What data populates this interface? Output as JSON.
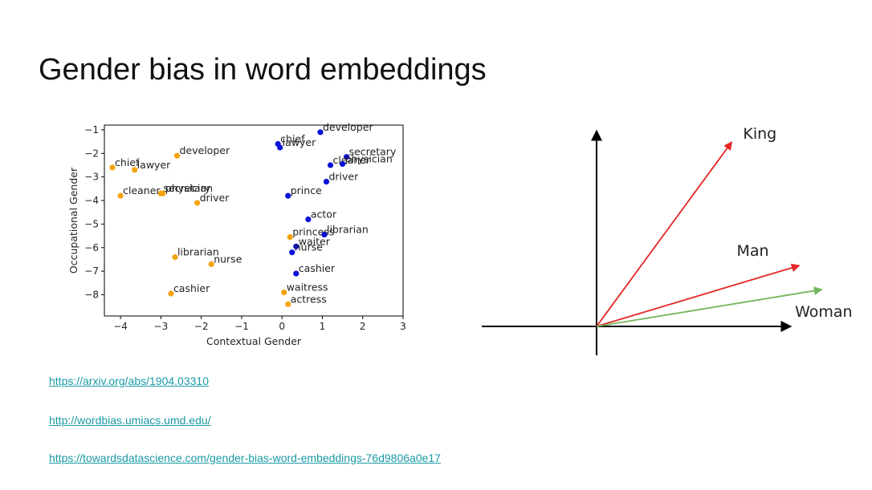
{
  "slide": {
    "title": "Gender bias in word embeddings",
    "links": [
      "https://arxiv.org/abs/1904.03310",
      "http://wordbias.umiacs.umd.edu/",
      "https://towardsdatascience.com/gender-bias-word-embeddings-76d9806a0e17"
    ]
  },
  "colors": {
    "orange": "#f5a30f",
    "blue": "#0a12d6",
    "red": "#e42626",
    "green": "#72b55b",
    "link": "#1a9aa5"
  },
  "chart_data": [
    {
      "type": "scatter",
      "xlabel": "Contextual Gender",
      "ylabel": "Occupational Gender",
      "xlim": [
        -4.4,
        3.0
      ],
      "ylim": [
        -8.9,
        -0.8
      ],
      "xticks": [
        -4,
        -3,
        -2,
        -1,
        0,
        1,
        2,
        3
      ],
      "yticks": [
        -1,
        -2,
        -3,
        -4,
        -5,
        -6,
        -7,
        -8
      ],
      "grid": false,
      "series": [
        {
          "color": "orange",
          "points": [
            {
              "label": "developer",
              "x": -2.6,
              "y": -2.1
            },
            {
              "label": "chief",
              "x": -4.2,
              "y": -2.6
            },
            {
              "label": "lawyer",
              "x": -3.65,
              "y": -2.7
            },
            {
              "label": "secretary",
              "x": -3.0,
              "y": -3.7
            },
            {
              "label": "physician",
              "x": -2.95,
              "y": -3.7
            },
            {
              "label": "cleaner",
              "x": -4.0,
              "y": -3.8
            },
            {
              "label": "driver",
              "x": -2.1,
              "y": -4.1
            },
            {
              "label": "librarian",
              "x": -2.65,
              "y": -6.4
            },
            {
              "label": "nurse",
              "x": -1.75,
              "y": -6.7
            },
            {
              "label": "cashier",
              "x": -2.75,
              "y": -7.95
            },
            {
              "label": "princess",
              "x": 0.2,
              "y": -5.55
            },
            {
              "label": "waitress",
              "x": 0.05,
              "y": -7.9
            },
            {
              "label": "actress",
              "x": 0.15,
              "y": -8.4
            }
          ]
        },
        {
          "color": "blue",
          "points": [
            {
              "label": "developer",
              "x": 0.95,
              "y": -1.1
            },
            {
              "label": "chief",
              "x": -0.1,
              "y": -1.6
            },
            {
              "label": "lawyer",
              "x": -0.05,
              "y": -1.75
            },
            {
              "label": "secretary",
              "x": 1.6,
              "y": -2.15
            },
            {
              "label": "cleaner",
              "x": 1.2,
              "y": -2.5
            },
            {
              "label": "physician",
              "x": 1.5,
              "y": -2.45
            },
            {
              "label": "driver",
              "x": 1.1,
              "y": -3.2
            },
            {
              "label": "prince",
              "x": 0.15,
              "y": -3.8
            },
            {
              "label": "actor",
              "x": 0.65,
              "y": -4.8
            },
            {
              "label": "librarian",
              "x": 1.05,
              "y": -5.45
            },
            {
              "label": "waiter",
              "x": 0.35,
              "y": -5.95
            },
            {
              "label": "nurse",
              "x": 0.25,
              "y": -6.2
            },
            {
              "label": "cashier",
              "x": 0.35,
              "y": -7.1
            }
          ]
        }
      ]
    },
    {
      "type": "line",
      "vectors": [
        {
          "label": "King",
          "color": "red",
          "x": 0.6,
          "y": 1.0
        },
        {
          "label": "Man",
          "color": "red",
          "x": 0.9,
          "y": 0.33
        },
        {
          "label": "Woman",
          "color": "green",
          "x": 1.0,
          "y": 0.2
        }
      ],
      "axes": "cross"
    }
  ]
}
